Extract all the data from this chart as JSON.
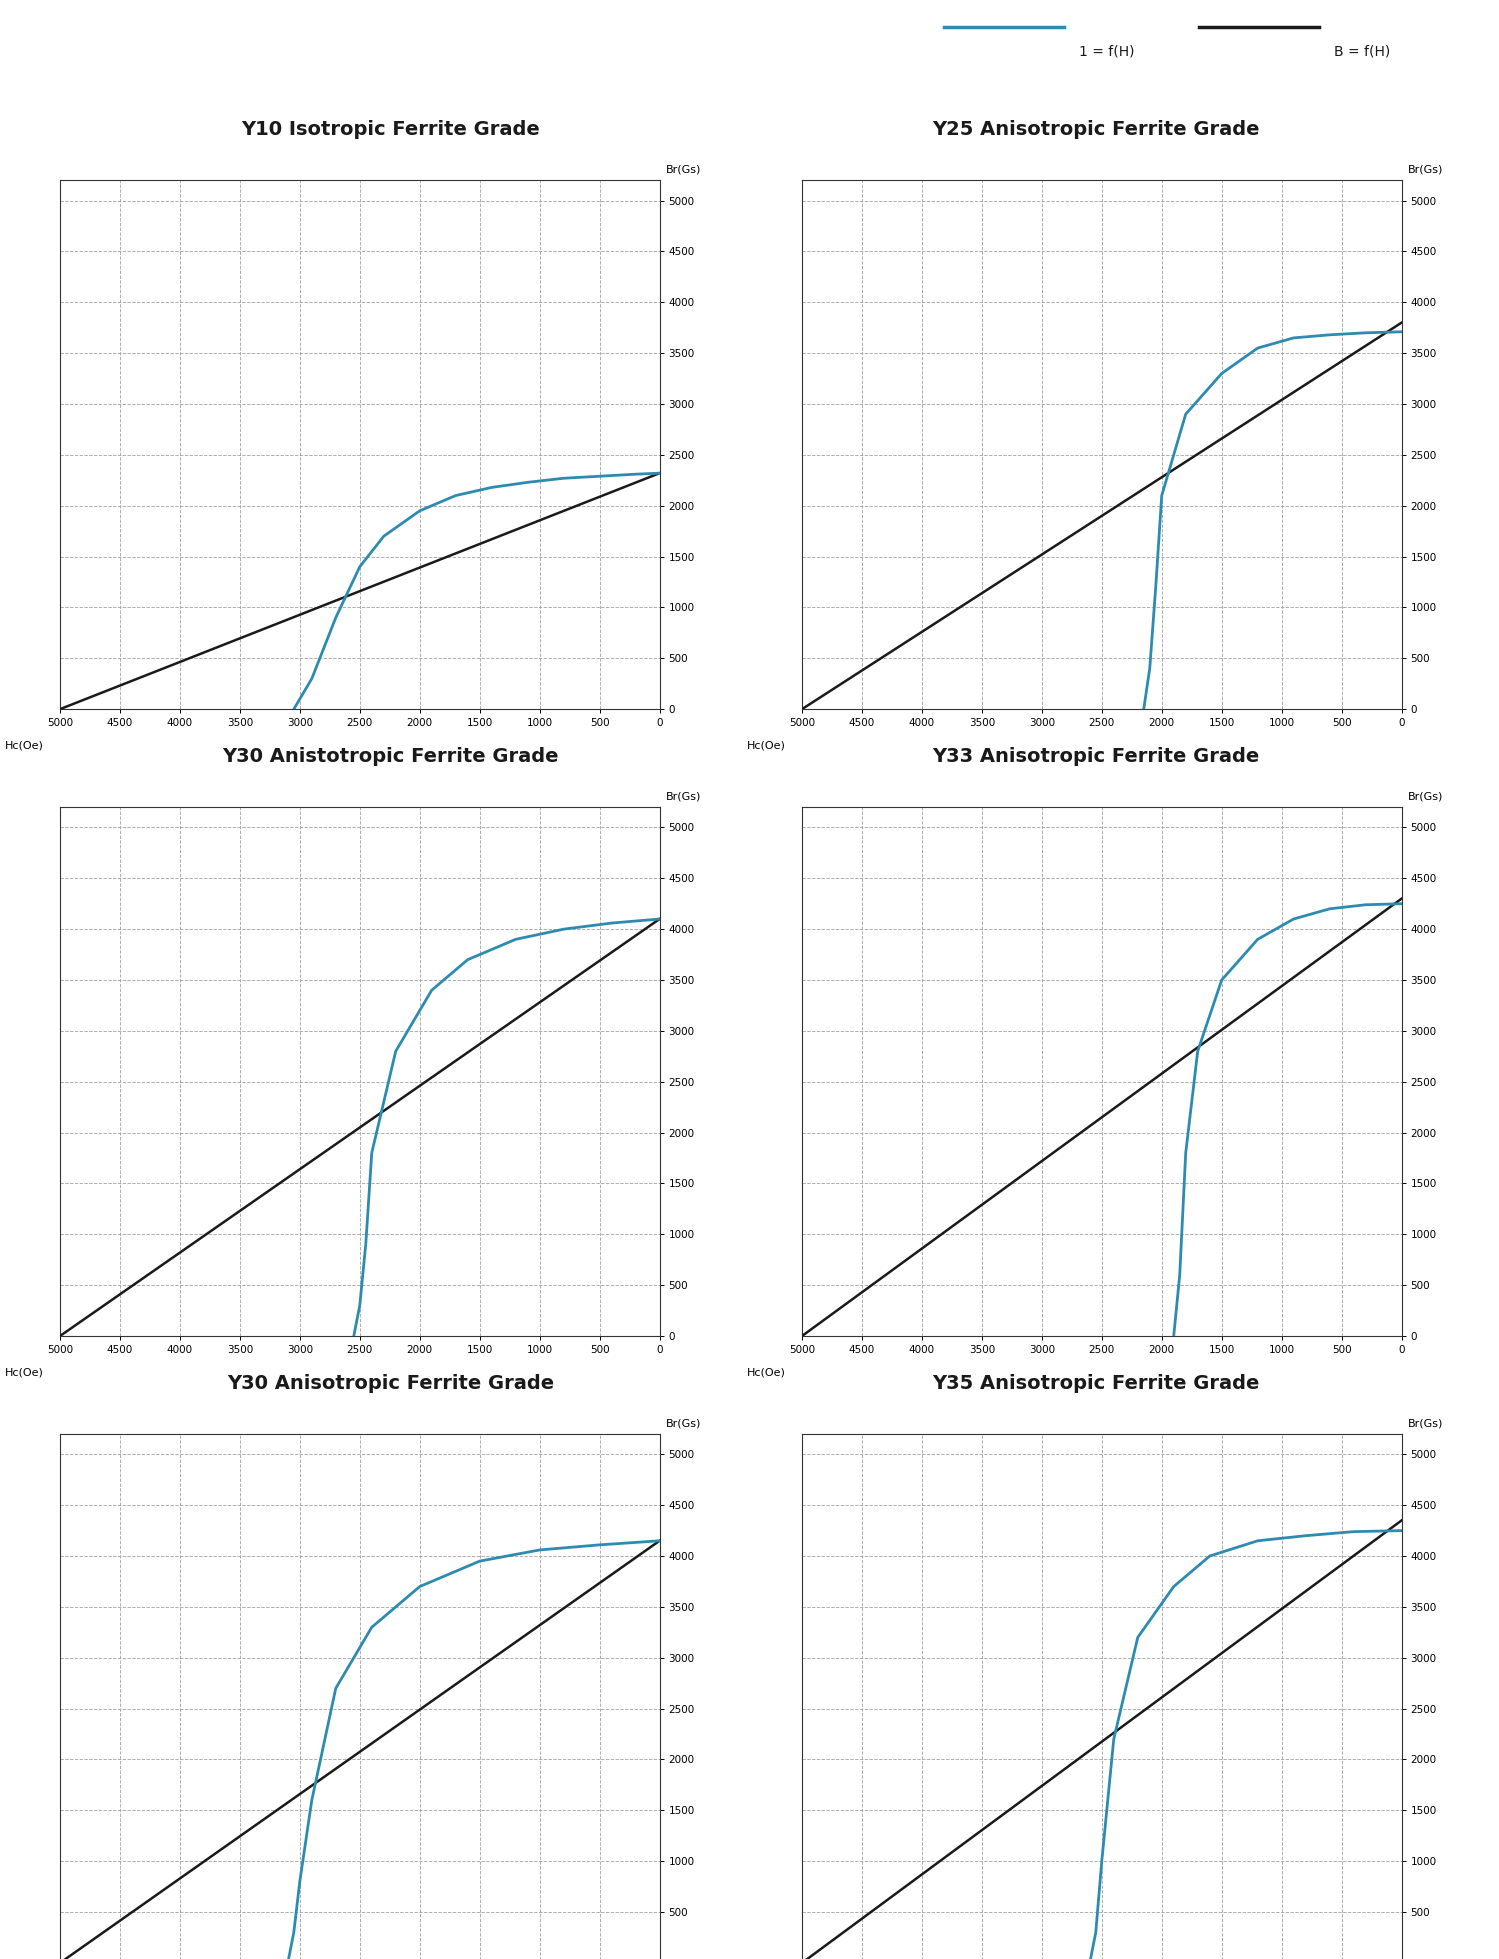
{
  "background_color": "#ffffff",
  "header_color": "#b87b6e",
  "header_text_color": "#1a1a1a",
  "blue_color": "#2e8bb0",
  "black_color": "#1a1a1a",
  "grid_color": "#999999",
  "legend_blue_label": "1 = f(H)",
  "legend_black_label": "B = f(H)",
  "rows": [
    {
      "left_title": "Y10 Isotropic Ferrite Grade",
      "right_title": "Y25 Anisotropic Ferrite Grade",
      "left_panel": {
        "blue_x": [
          3050,
          2900,
          2700,
          2500,
          2300,
          2000,
          1700,
          1400,
          1100,
          800,
          500,
          200,
          0
        ],
        "blue_y": [
          0,
          300,
          900,
          1400,
          1700,
          1950,
          2100,
          2180,
          2230,
          2270,
          2290,
          2310,
          2320
        ],
        "black_slope": 2320
      },
      "right_panel": {
        "blue_x": [
          2150,
          2100,
          2050,
          2000,
          1800,
          1500,
          1200,
          900,
          600,
          300,
          0
        ],
        "blue_y": [
          0,
          400,
          1200,
          2100,
          2900,
          3300,
          3550,
          3650,
          3680,
          3700,
          3710
        ],
        "black_slope": 3800
      }
    },
    {
      "left_title": "Y30 Anistotropic Ferrite Grade",
      "right_title": "Y33 Anisotropic Ferrite Grade",
      "left_panel": {
        "blue_x": [
          2550,
          2500,
          2450,
          2400,
          2200,
          1900,
          1600,
          1200,
          800,
          400,
          0
        ],
        "blue_y": [
          0,
          300,
          900,
          1800,
          2800,
          3400,
          3700,
          3900,
          4000,
          4060,
          4100
        ],
        "black_slope": 4100
      },
      "right_panel": {
        "blue_x": [
          1900,
          1850,
          1800,
          1700,
          1500,
          1200,
          900,
          600,
          300,
          0
        ],
        "blue_y": [
          0,
          600,
          1800,
          2800,
          3500,
          3900,
          4100,
          4200,
          4240,
          4250
        ],
        "black_slope": 4300
      }
    },
    {
      "left_title": "Y30 Anisotropic Ferrite Grade",
      "right_title": "Y35 Anisotropic Ferrite Grade",
      "left_panel": {
        "blue_x": [
          3100,
          3050,
          3000,
          2900,
          2700,
          2400,
          2000,
          1500,
          1000,
          500,
          0
        ],
        "blue_y": [
          0,
          300,
          800,
          1600,
          2700,
          3300,
          3700,
          3950,
          4060,
          4110,
          4150
        ],
        "black_slope": 4150
      },
      "right_panel": {
        "blue_x": [
          2600,
          2550,
          2500,
          2400,
          2200,
          1900,
          1600,
          1200,
          800,
          400,
          0
        ],
        "blue_y": [
          0,
          300,
          1000,
          2200,
          3200,
          3700,
          4000,
          4150,
          4200,
          4240,
          4250
        ],
        "black_slope": 4350
      }
    }
  ]
}
